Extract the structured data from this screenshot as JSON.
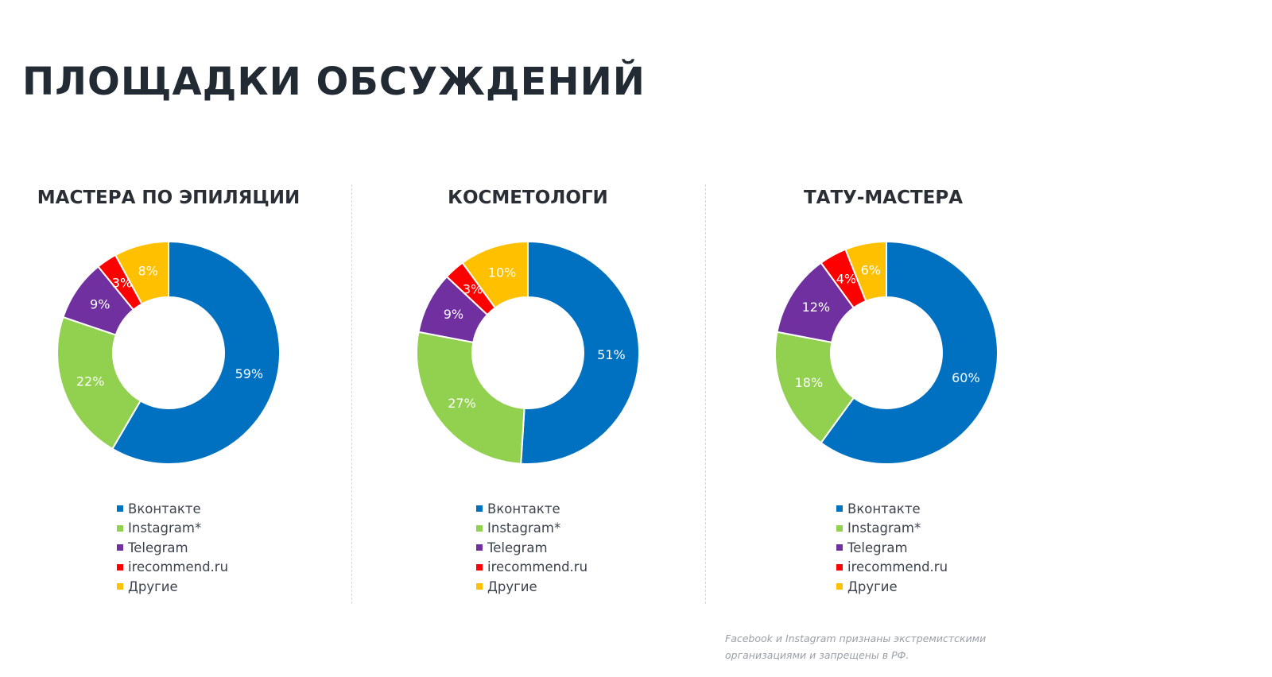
{
  "page": {
    "title": "ПЛОЩАДКИ ОБСУЖДЕНИЙ",
    "footnote_lines": [
      "Facebook и Instagram признаны экстремистскими",
      "организациями и запрещены в РФ."
    ]
  },
  "legend": {
    "items": [
      "Вконтакте",
      "Instagram*",
      "Telegram",
      "irecommend.ru",
      "Другие"
    ]
  },
  "chart_data": [
    {
      "type": "pie",
      "title": "МАСТЕРА ПО ЭПИЛЯЦИИ",
      "categories": [
        "Вконтакте",
        "Instagram*",
        "Telegram",
        "irecommend.ru",
        "Другие"
      ],
      "values": [
        59,
        22,
        9,
        3,
        8
      ],
      "labels": [
        "59%",
        "22%",
        "9%",
        "3%",
        "8%"
      ],
      "colors": [
        "#0070c0",
        "#92d050",
        "#7030a0",
        "#ff0000",
        "#ffc000"
      ],
      "hole": true,
      "legend_position": "bottom"
    },
    {
      "type": "pie",
      "title": "КОСМЕТОЛОГИ",
      "categories": [
        "Вконтакте",
        "Instagram*",
        "Telegram",
        "irecommend.ru",
        "Другие"
      ],
      "values": [
        51,
        27,
        9,
        3,
        10
      ],
      "labels": [
        "51%",
        "27%",
        "9%",
        "3%",
        "10%"
      ],
      "colors": [
        "#0070c0",
        "#92d050",
        "#7030a0",
        "#ff0000",
        "#ffc000"
      ],
      "hole": true,
      "legend_position": "bottom"
    },
    {
      "type": "pie",
      "title": "ТАТУ-МАСТЕРА",
      "categories": [
        "Вконтакте",
        "Instagram*",
        "Telegram",
        "irecommend.ru",
        "Другие"
      ],
      "values": [
        60,
        18,
        12,
        4,
        6
      ],
      "labels": [
        "60%",
        "18%",
        "12%",
        "4%",
        "6%"
      ],
      "colors": [
        "#0070c0",
        "#92d050",
        "#7030a0",
        "#ff0000",
        "#ffc000"
      ],
      "hole": true,
      "legend_position": "bottom"
    }
  ]
}
